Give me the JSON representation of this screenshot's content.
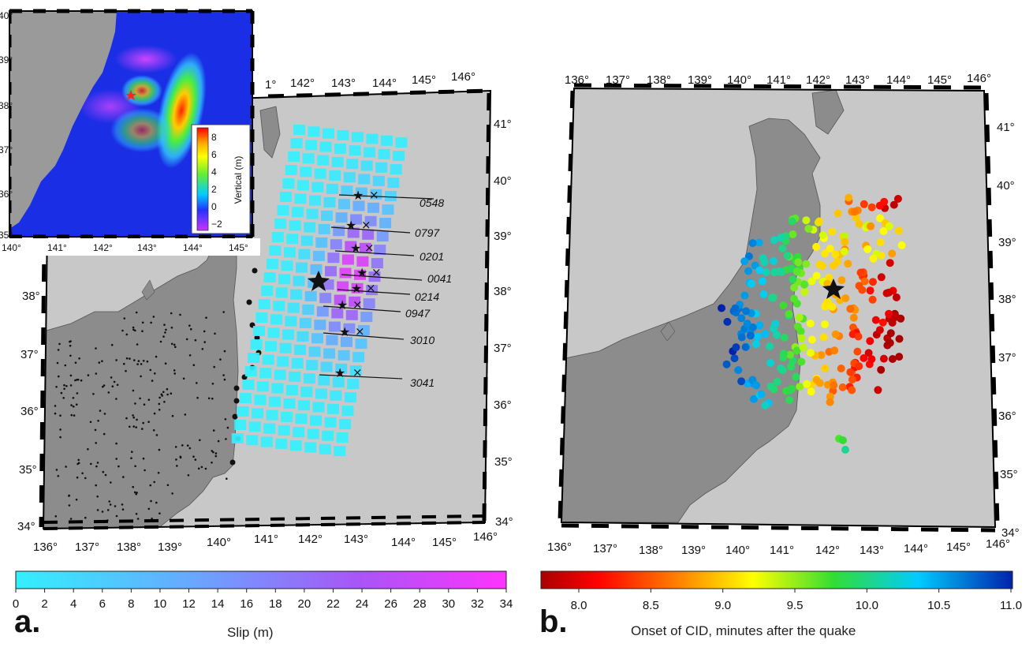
{
  "panel_a": {
    "letter": "a.",
    "lon_ticks": [
      "136°",
      "137°",
      "138°",
      "139°",
      "140°",
      "141°",
      "142°",
      "143°",
      "144°",
      "145°",
      "146°"
    ],
    "lat_ticks_left": [
      "34°",
      "35°",
      "36°",
      "37°",
      "38°"
    ],
    "lat_ticks_right": [
      "34°",
      "35°",
      "36°",
      "37°",
      "38°",
      "39°",
      "40°",
      "41°"
    ],
    "top_ticks": [
      "1°",
      "142°",
      "143°",
      "144°",
      "145°",
      "146°"
    ],
    "tracks": [
      "0548",
      "0797",
      "0201",
      "0041",
      "0214",
      "0947",
      "3010",
      "3041"
    ],
    "colorbar": {
      "title": "Slip (m)",
      "ticks": [
        "0",
        "2",
        "4",
        "6",
        "8",
        "10",
        "12",
        "14",
        "16",
        "18",
        "20",
        "22",
        "24",
        "26",
        "28",
        "30",
        "32",
        "34"
      ],
      "colors": [
        "#33f0ff",
        "#66aaff",
        "#a855f7",
        "#ff33ff"
      ]
    }
  },
  "inset": {
    "lon_ticks": [
      "140°",
      "141°",
      "142°",
      "143°",
      "144°",
      "145°"
    ],
    "lat_ticks": [
      "35°",
      "36°",
      "37°",
      "38°",
      "39°",
      "40°"
    ],
    "colorbar": {
      "title": "Vertical (m)",
      "ticks": [
        "8",
        "6",
        "4",
        "2",
        "0",
        "−2"
      ],
      "colors": [
        "#ff0000",
        "#ffaa00",
        "#ffff00",
        "#66ee33",
        "#00ccff",
        "#2233ff",
        "#cc33ff"
      ]
    }
  },
  "panel_b": {
    "letter": "b.",
    "lon_ticks": [
      "136°",
      "137°",
      "138°",
      "139°",
      "140°",
      "141°",
      "142°",
      "143°",
      "144°",
      "145°",
      "146°"
    ],
    "top_ticks": [
      "136°",
      "137°",
      "138°",
      "139°",
      "140°",
      "141°",
      "142°",
      "143°",
      "144°",
      "145°",
      "146°"
    ],
    "lat_ticks": [
      "34°",
      "35°",
      "36°",
      "37°",
      "38°",
      "39°",
      "40°",
      "41°"
    ],
    "colorbar": {
      "title": "Onset of CID, minutes after the quake",
      "ticks": [
        "8.0",
        "8.5",
        "9.0",
        "9.5",
        "10.0",
        "10.5",
        "11.0"
      ],
      "colors": [
        "#aa0000",
        "#ff0000",
        "#ff8800",
        "#ffff00",
        "#33dd33",
        "#00ccff",
        "#0022aa"
      ]
    }
  },
  "colors": {
    "sea": "#c8c8c8",
    "land": "#8c8c8c",
    "inset_sea": "#1a2ee6"
  }
}
